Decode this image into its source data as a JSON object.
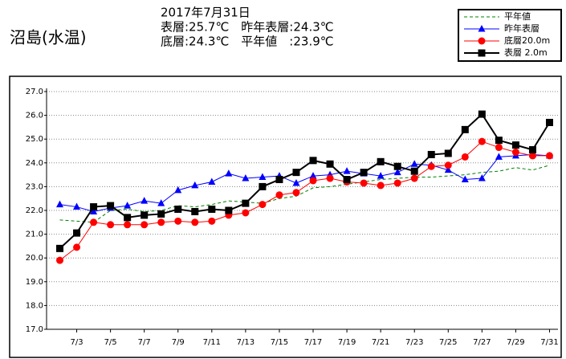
{
  "chart_data": {
    "type": "line",
    "title": "沼島(水温)",
    "header": [
      "2017年7月31日",
      "表層:25.7℃　昨年表層:24.3℃",
      "底層:24.3℃　平年値　:23.9℃"
    ],
    "categories": [
      null,
      "7/3",
      null,
      "7/5",
      null,
      "7/7",
      null,
      "7/9",
      null,
      "7/11",
      null,
      "7/13",
      null,
      "7/15",
      null,
      "7/17",
      null,
      "7/19",
      null,
      "7/21",
      null,
      "7/23",
      null,
      "7/25",
      null,
      "7/27",
      null,
      "7/29",
      null,
      "7/31"
    ],
    "series": [
      {
        "name": "平年値",
        "color": "#008000",
        "marker": "none",
        "dash": true,
        "values": [
          21.6,
          21.55,
          21.5,
          22.0,
          22.05,
          21.95,
          22.0,
          22.2,
          22.15,
          22.25,
          22.4,
          22.35,
          22.3,
          22.5,
          22.6,
          22.95,
          23.0,
          23.1,
          23.2,
          23.3,
          23.35,
          23.4,
          23.4,
          23.45,
          23.5,
          23.6,
          23.65,
          23.8,
          23.7,
          23.9
        ]
      },
      {
        "name": "昨年表層",
        "color": "#0000ff",
        "marker": "triangle",
        "values": [
          22.25,
          22.15,
          21.95,
          22.1,
          22.2,
          22.4,
          22.3,
          22.85,
          23.05,
          23.2,
          23.55,
          23.35,
          23.4,
          23.45,
          23.15,
          23.45,
          23.5,
          23.65,
          23.55,
          23.45,
          23.6,
          23.95,
          23.9,
          23.7,
          23.3,
          23.35,
          24.25,
          24.3,
          24.35,
          24.3
        ]
      },
      {
        "name": "底層20.0m",
        "color": "#ff0000",
        "marker": "circle",
        "values": [
          19.9,
          20.45,
          21.5,
          21.4,
          21.4,
          21.4,
          21.5,
          21.55,
          21.5,
          21.55,
          21.8,
          21.9,
          22.25,
          22.65,
          22.75,
          23.25,
          23.35,
          23.2,
          23.15,
          23.05,
          23.15,
          23.35,
          23.85,
          23.9,
          24.25,
          24.9,
          24.65,
          24.45,
          24.3,
          24.3
        ]
      },
      {
        "name": "表層 2.0m",
        "color": "#000000",
        "marker": "square",
        "values": [
          20.4,
          21.05,
          22.15,
          22.2,
          21.7,
          21.8,
          21.85,
          22.05,
          21.95,
          22.05,
          22.0,
          22.3,
          23.0,
          23.3,
          23.6,
          24.1,
          23.95,
          23.3,
          23.6,
          24.05,
          23.85,
          23.65,
          24.35,
          24.4,
          25.4,
          26.05,
          24.95,
          24.75,
          24.55,
          25.7
        ]
      }
    ],
    "ylim": [
      17,
      27
    ],
    "yticks": [
      {
        "value": 17,
        "label": "17.0"
      },
      {
        "value": 18,
        "label": "18.0"
      },
      {
        "value": 19,
        "label": "19.0"
      },
      {
        "value": 20,
        "label": "20.0"
      },
      {
        "value": 21,
        "label": "21.0"
      },
      {
        "value": 22,
        "label": "22.0"
      },
      {
        "value": 23,
        "label": "23.0"
      },
      {
        "value": 24,
        "label": "24.0"
      },
      {
        "value": 25,
        "label": "25.0"
      },
      {
        "value": 26,
        "label": "26.0"
      },
      {
        "value": 27,
        "label": "27.0"
      }
    ],
    "grid": true
  }
}
